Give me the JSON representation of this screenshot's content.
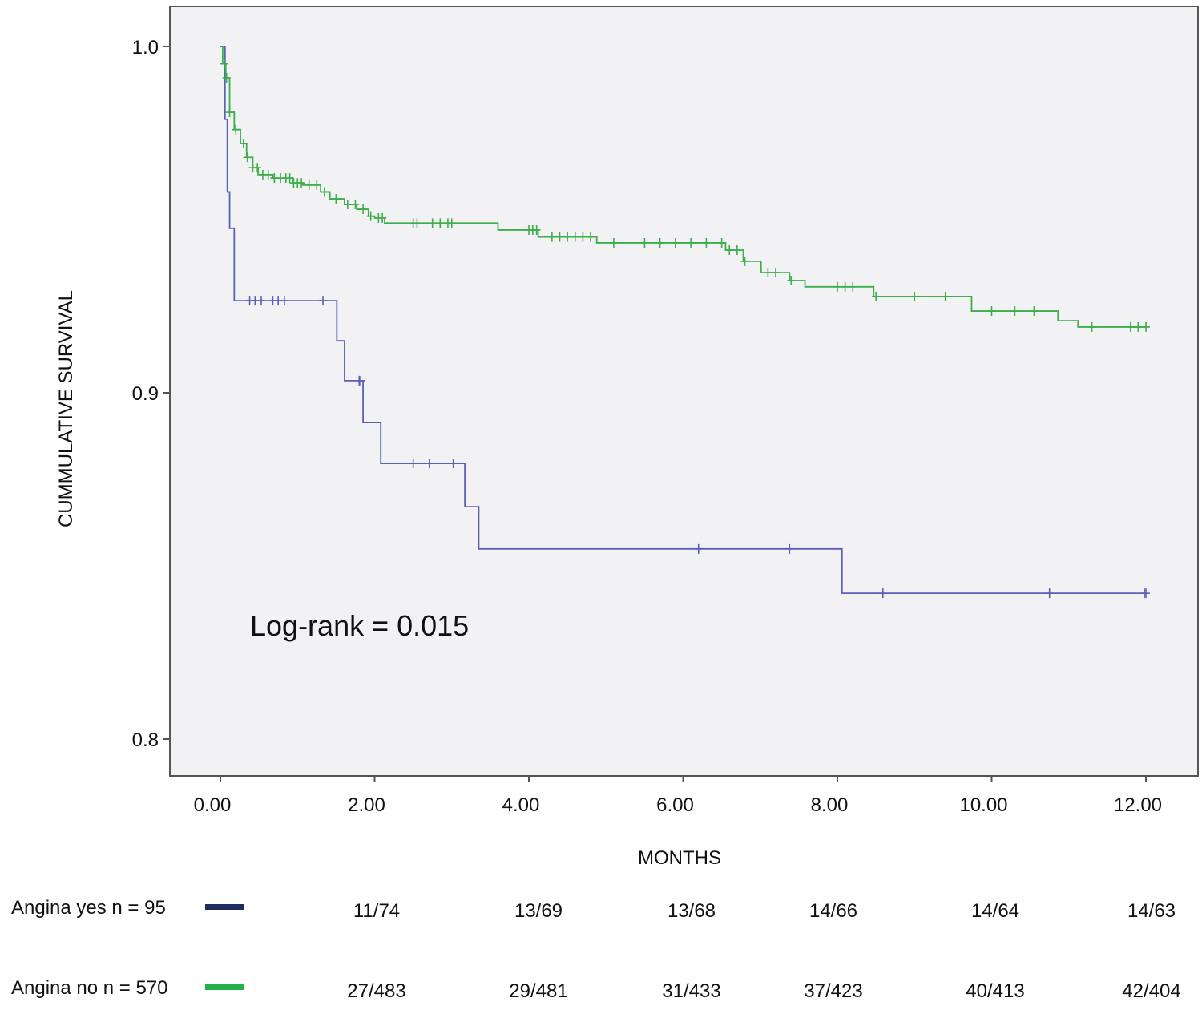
{
  "chart_data": {
    "type": "line",
    "subtype": "kaplan-meier",
    "xlabel": "MONTHS",
    "ylabel": "CUMMULATIVE  SURVIVAL",
    "xlim": [
      0,
      12
    ],
    "ylim": [
      0.79,
      1.01
    ],
    "xticks": [
      "0.00",
      "2.00",
      "4.00",
      "6.00",
      "8.00",
      "10.00",
      "12.00"
    ],
    "yticks": [
      "1.0",
      "0.9",
      "0.8"
    ],
    "annotation": "Log-rank = 0.015",
    "grid": false,
    "background": "#f2f2f4",
    "series": [
      {
        "name": "Angina yes n = 95",
        "color": "#5a60b8",
        "legend_color": "#1f2d5c",
        "steps": [
          [
            0,
            1.0
          ],
          [
            0.06,
            0.979
          ],
          [
            0.09,
            0.958
          ],
          [
            0.12,
            0.9475
          ],
          [
            0.18,
            0.9266
          ],
          [
            1.51,
            0.915
          ],
          [
            1.61,
            0.9035
          ],
          [
            1.85,
            0.8914
          ],
          [
            2.08,
            0.8796
          ],
          [
            3.17,
            0.8671
          ],
          [
            3.35,
            0.8549
          ],
          [
            8.06,
            0.8421
          ],
          [
            12.0,
            0.8421
          ]
        ],
        "censored": [
          0.38,
          0.45,
          0.53,
          0.68,
          0.75,
          0.83,
          1.33,
          1.8,
          1.82,
          2.5,
          2.71,
          3.02,
          6.2,
          7.38,
          8.59,
          10.75,
          11.98,
          12.0
        ],
        "risk_table": [
          "11/74",
          "13/69",
          "13/68",
          "14/66",
          "14/64",
          "14/63"
        ]
      },
      {
        "name": "Angina no n = 570",
        "color": "#3cae4a",
        "legend_color": "#22b04b",
        "steps": [
          [
            0.03,
            1.0
          ],
          [
            0.03,
            0.995
          ],
          [
            0.07,
            0.991
          ],
          [
            0.12,
            0.981
          ],
          [
            0.18,
            0.976
          ],
          [
            0.26,
            0.972
          ],
          [
            0.34,
            0.968
          ],
          [
            0.42,
            0.965
          ],
          [
            0.49,
            0.963
          ],
          [
            0.68,
            0.962
          ],
          [
            0.94,
            0.9606
          ],
          [
            1.07,
            0.96
          ],
          [
            1.3,
            0.958
          ],
          [
            1.42,
            0.956
          ],
          [
            1.61,
            0.9544
          ],
          [
            1.77,
            0.953
          ],
          [
            1.92,
            0.951
          ],
          [
            2.0,
            0.9505
          ],
          [
            2.13,
            0.949
          ],
          [
            3.6,
            0.947
          ],
          [
            4.12,
            0.945
          ],
          [
            4.88,
            0.9433
          ],
          [
            6.55,
            0.9412
          ],
          [
            6.78,
            0.938
          ],
          [
            7.01,
            0.9347
          ],
          [
            7.38,
            0.9324
          ],
          [
            7.58,
            0.9306
          ],
          [
            8.47,
            0.9278
          ],
          [
            9.74,
            0.9236
          ],
          [
            10.86,
            0.9208
          ],
          [
            11.12,
            0.919
          ],
          [
            12.0,
            0.919
          ]
        ],
        "censored": [
          0.05,
          0.08,
          0.12,
          0.2,
          0.3,
          0.35,
          0.42,
          0.48,
          0.55,
          0.62,
          0.7,
          0.78,
          0.85,
          0.9,
          0.95,
          1.0,
          1.05,
          1.15,
          1.25,
          1.35,
          1.5,
          1.65,
          1.75,
          1.85,
          1.95,
          2.05,
          2.1,
          2.5,
          2.55,
          2.75,
          2.85,
          2.95,
          3.0,
          4.0,
          4.05,
          4.1,
          4.3,
          4.4,
          4.5,
          4.6,
          4.7,
          4.8,
          5.1,
          5.5,
          5.7,
          5.9,
          6.1,
          6.3,
          6.5,
          6.6,
          6.7,
          6.8,
          7.1,
          7.2,
          7.4,
          8.0,
          8.1,
          8.2,
          8.5,
          9.0,
          9.4,
          10.0,
          10.3,
          10.55,
          11.3,
          11.8,
          11.9,
          12.0
        ],
        "risk_table": [
          "27/483",
          "29/481",
          "31/433",
          "37/423",
          "40/413",
          "42/404"
        ]
      }
    ]
  }
}
